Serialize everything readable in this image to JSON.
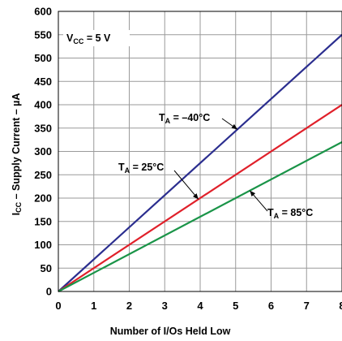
{
  "chart_data": {
    "type": "line",
    "xlabel": "Number of I/Os Held Low",
    "ylabel": "Icc – Supply Current – µA",
    "ylabel_main": "I",
    "ylabel_sub": "CC",
    "ylabel_rest": " – Supply Current – µA",
    "xlim": [
      0,
      8
    ],
    "ylim": [
      0,
      600
    ],
    "x_ticks": [
      "0",
      "1",
      "2",
      "3",
      "4",
      "5",
      "6",
      "7",
      "8"
    ],
    "y_ticks": [
      "0",
      "50",
      "100",
      "150",
      "200",
      "250",
      "300",
      "350",
      "400",
      "450",
      "500",
      "550",
      "600"
    ],
    "grid": true,
    "condition_box": {
      "main": "V",
      "sub": "CC",
      "rest": " = 5 V"
    },
    "series": [
      {
        "name": "TA = –40°C",
        "label_main": "T",
        "label_sub": "A",
        "label_rest": " = –40°C",
        "color": "#2b2e8f",
        "x": [
          0,
          8
        ],
        "y": [
          0,
          550
        ]
      },
      {
        "name": "TA = 25°C",
        "label_main": "T",
        "label_sub": "A",
        "label_rest": " = 25°C",
        "color": "#e0202a",
        "x": [
          0,
          8
        ],
        "y": [
          0,
          400
        ]
      },
      {
        "name": "TA = 85°C",
        "label_main": "T",
        "label_sub": "A",
        "label_rest": " = 85°C",
        "color": "#1a9448",
        "x": [
          0,
          8
        ],
        "y": [
          0,
          320
        ]
      }
    ]
  }
}
